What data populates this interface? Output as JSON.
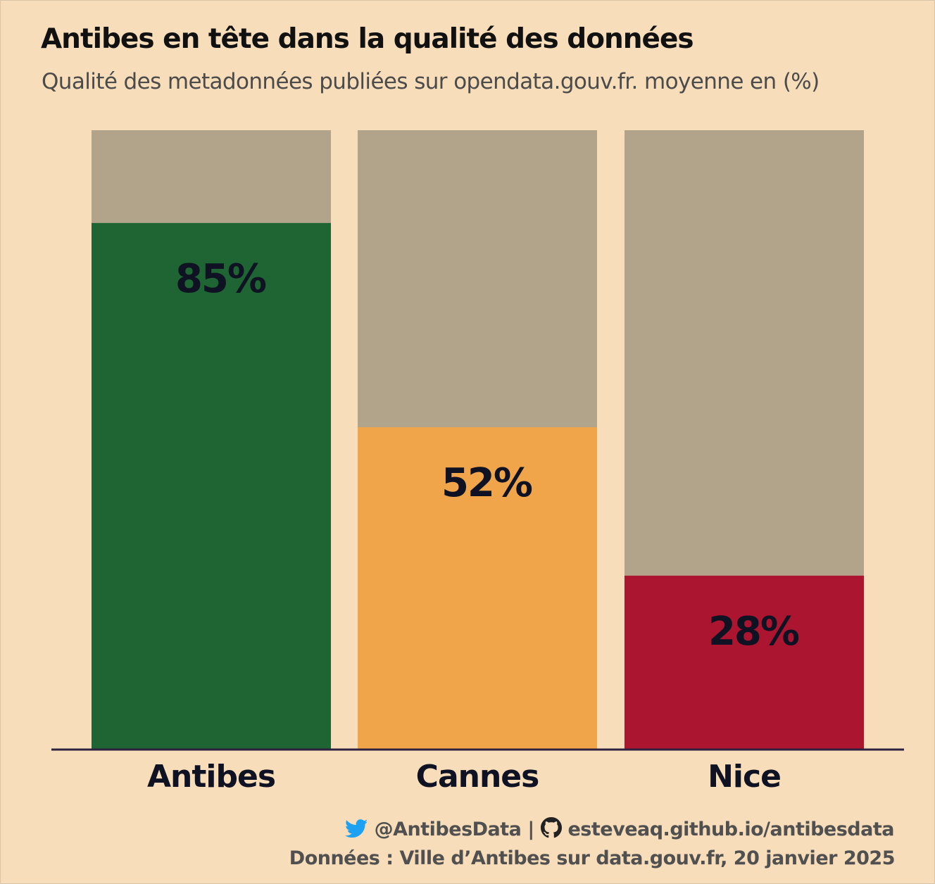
{
  "title": "Antibes en tête dans la qualité des données",
  "subtitle": "Qualité des metadonnées publiées sur opendata.gouv.fr. moyenne en (%)",
  "caption": {
    "twitter_icon": "twitter-bird-icon",
    "twitter_handle": "@AntibesData",
    "separator": "|",
    "github_icon": "github-octocat-icon",
    "website": "esteveaq.github.io/antibesdata",
    "source": "Données : Ville d’Antibes sur data.gouv.fr, 20 janvier 2025"
  },
  "colors": {
    "background": "#f7ddb9",
    "remainder": "#b2a38b",
    "baseline": "#2e2240",
    "label_text": "#0f1222",
    "twitter_blue": "#1da1f2"
  },
  "chart_data": {
    "type": "bar",
    "stacked": true,
    "categories": [
      "Antibes",
      "Cannes",
      "Nice"
    ],
    "values": [
      85,
      52,
      28
    ],
    "data_labels": [
      "85%",
      "52%",
      "28%"
    ],
    "colors": [
      "#1f6433",
      "#f0a54a",
      "#ab1530"
    ],
    "ylim": [
      0,
      100
    ],
    "grid": false,
    "legend": "none",
    "xlabel": "",
    "ylabel": ""
  }
}
